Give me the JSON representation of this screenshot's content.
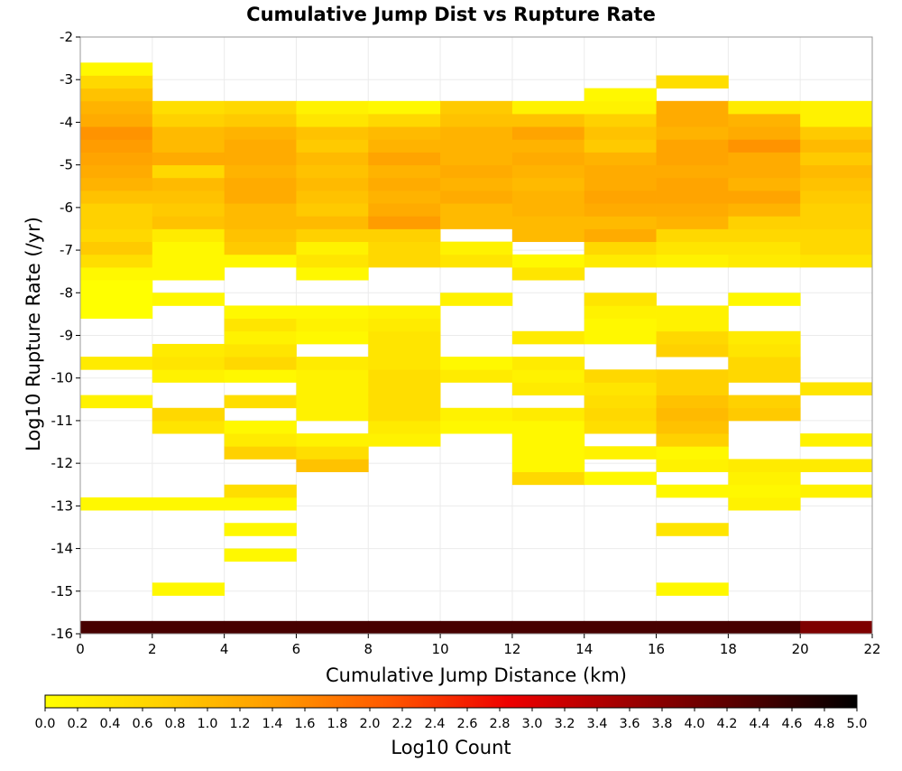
{
  "chart_data": {
    "type": "heatmap",
    "title": "Cumulative Jump Dist vs Rupture Rate",
    "xlabel": "Cumulative Jump Distance (km)",
    "ylabel": "Log10 Rupture Rate (/yr)",
    "colorbar_label": "Log10 Count",
    "xlim": [
      0,
      22
    ],
    "ylim": [
      -16,
      -2
    ],
    "x_ticks": [
      "0",
      "2",
      "4",
      "6",
      "8",
      "10",
      "12",
      "14",
      "16",
      "18",
      "20",
      "22"
    ],
    "y_ticks": [
      "-2",
      "-3",
      "-4",
      "-5",
      "-6",
      "-7",
      "-8",
      "-9",
      "-10",
      "-11",
      "-12",
      "-13",
      "-14",
      "-15",
      "-16"
    ],
    "colorbar_range": [
      0,
      5
    ],
    "colorbar_ticks": [
      "0.0",
      "0.2",
      "0.4",
      "0.6",
      "0.8",
      "1.0",
      "1.2",
      "1.4",
      "1.6",
      "1.8",
      "2.0",
      "2.2",
      "2.4",
      "2.6",
      "2.8",
      "3.0",
      "3.2",
      "3.4",
      "3.6",
      "3.8",
      "4.0",
      "4.2",
      "4.4",
      "4.6",
      "4.8",
      "5.0"
    ],
    "colormap": [
      "#ffff00",
      "#ffd000",
      "#ff9a00",
      "#ff5500",
      "#ee0000",
      "#a00000",
      "#550000",
      "#000000"
    ],
    "grid": true,
    "x_bin_width": 2,
    "y_bin_height": 0.3,
    "y_bin_origin": -16,
    "columns": [
      {
        "x": 0,
        "cells": [
          [
            -16.0,
            4.4
          ],
          [
            -13.1,
            0.1
          ],
          [
            -10.7,
            0.2
          ],
          [
            -9.8,
            0.3
          ],
          [
            -8.6,
            0.0
          ],
          [
            -8.3,
            0.0
          ],
          [
            -8.0,
            0.0
          ],
          [
            -7.7,
            0.1
          ],
          [
            -7.4,
            0.5
          ],
          [
            -7.1,
            0.8
          ],
          [
            -6.8,
            0.6
          ],
          [
            -6.5,
            0.7
          ],
          [
            -6.2,
            0.7
          ],
          [
            -5.9,
            0.9
          ],
          [
            -5.6,
            1.1
          ],
          [
            -5.3,
            1.2
          ],
          [
            -5.0,
            1.3
          ],
          [
            -4.7,
            1.4
          ],
          [
            -4.4,
            1.5
          ],
          [
            -4.1,
            1.2
          ],
          [
            -3.8,
            1.1
          ],
          [
            -3.5,
            0.9
          ],
          [
            -3.2,
            0.6
          ],
          [
            -2.9,
            0.1
          ]
        ]
      },
      {
        "x": 2,
        "cells": [
          [
            -16.0,
            4.4
          ],
          [
            -15.1,
            0.1
          ],
          [
            -13.1,
            0.1
          ],
          [
            -11.3,
            0.4
          ],
          [
            -11.0,
            0.6
          ],
          [
            -10.1,
            0.2
          ],
          [
            -9.8,
            0.4
          ],
          [
            -9.5,
            0.3
          ],
          [
            -8.3,
            0.1
          ],
          [
            -7.7,
            0.1
          ],
          [
            -7.4,
            0.1
          ],
          [
            -7.1,
            0.1
          ],
          [
            -6.8,
            0.3
          ],
          [
            -6.5,
            0.9
          ],
          [
            -6.2,
            0.8
          ],
          [
            -5.9,
            0.9
          ],
          [
            -5.6,
            1.0
          ],
          [
            -5.3,
            0.6
          ],
          [
            -5.0,
            1.2
          ],
          [
            -4.7,
            1.0
          ],
          [
            -4.4,
            1.0
          ],
          [
            -4.1,
            0.7
          ],
          [
            -3.8,
            0.5
          ]
        ]
      },
      {
        "x": 4,
        "cells": [
          [
            -16.0,
            4.4
          ],
          [
            -14.3,
            0.1
          ],
          [
            -13.7,
            0.1
          ],
          [
            -13.1,
            0.1
          ],
          [
            -12.8,
            0.5
          ],
          [
            -11.9,
            0.7
          ],
          [
            -11.6,
            0.3
          ],
          [
            -11.3,
            0.1
          ],
          [
            -10.7,
            0.5
          ],
          [
            -10.1,
            0.1
          ],
          [
            -9.8,
            0.6
          ],
          [
            -9.5,
            0.4
          ],
          [
            -9.2,
            0.2
          ],
          [
            -8.9,
            0.4
          ],
          [
            -8.6,
            0.1
          ],
          [
            -7.4,
            0.1
          ],
          [
            -7.1,
            0.8
          ],
          [
            -6.8,
            0.9
          ],
          [
            -6.5,
            1.0
          ],
          [
            -6.2,
            1.0
          ],
          [
            -5.9,
            1.2
          ],
          [
            -5.6,
            1.2
          ],
          [
            -5.3,
            1.1
          ],
          [
            -5.0,
            1.2
          ],
          [
            -4.7,
            1.2
          ],
          [
            -4.4,
            1.1
          ],
          [
            -4.1,
            0.8
          ],
          [
            -3.8,
            0.6
          ]
        ]
      },
      {
        "x": 6,
        "cells": [
          [
            -16.0,
            4.4
          ],
          [
            -12.2,
            0.9
          ],
          [
            -11.9,
            0.5
          ],
          [
            -11.6,
            0.2
          ],
          [
            -11.0,
            0.2
          ],
          [
            -10.7,
            0.2
          ],
          [
            -10.4,
            0.2
          ],
          [
            -10.1,
            0.2
          ],
          [
            -9.8,
            0.3
          ],
          [
            -9.2,
            0.1
          ],
          [
            -8.9,
            0.2
          ],
          [
            -8.6,
            0.1
          ],
          [
            -7.7,
            0.1
          ],
          [
            -7.4,
            0.4
          ],
          [
            -7.1,
            0.2
          ],
          [
            -6.8,
            0.7
          ],
          [
            -6.5,
            1.0
          ],
          [
            -6.2,
            0.8
          ],
          [
            -5.9,
            0.9
          ],
          [
            -5.6,
            1.0
          ],
          [
            -5.3,
            0.9
          ],
          [
            -5.0,
            1.0
          ],
          [
            -4.7,
            0.8
          ],
          [
            -4.4,
            0.9
          ],
          [
            -4.1,
            0.4
          ],
          [
            -3.8,
            0.2
          ]
        ]
      },
      {
        "x": 8,
        "cells": [
          [
            -16.0,
            4.4
          ],
          [
            -11.6,
            0.2
          ],
          [
            -11.3,
            0.3
          ],
          [
            -11.0,
            0.5
          ],
          [
            -10.7,
            0.5
          ],
          [
            -10.4,
            0.5
          ],
          [
            -10.1,
            0.5
          ],
          [
            -9.8,
            0.4
          ],
          [
            -9.5,
            0.4
          ],
          [
            -9.2,
            0.4
          ],
          [
            -8.9,
            0.3
          ],
          [
            -8.6,
            0.2
          ],
          [
            -7.4,
            0.6
          ],
          [
            -7.1,
            0.6
          ],
          [
            -6.8,
            0.7
          ],
          [
            -6.5,
            1.4
          ],
          [
            -6.2,
            1.2
          ],
          [
            -5.9,
            1.1
          ],
          [
            -5.6,
            1.2
          ],
          [
            -5.3,
            1.1
          ],
          [
            -5.0,
            1.3
          ],
          [
            -4.7,
            1.1
          ],
          [
            -4.4,
            1.0
          ],
          [
            -4.1,
            0.6
          ],
          [
            -3.8,
            0.1
          ]
        ]
      },
      {
        "x": 10,
        "cells": [
          [
            -16.0,
            4.4
          ],
          [
            -11.3,
            0.1
          ],
          [
            -11.0,
            0.2
          ],
          [
            -10.1,
            0.3
          ],
          [
            -9.8,
            0.1
          ],
          [
            -8.3,
            0.2
          ],
          [
            -7.4,
            0.4
          ],
          [
            -7.1,
            0.2
          ],
          [
            -6.5,
            1.0
          ],
          [
            -6.2,
            1.0
          ],
          [
            -5.9,
            1.2
          ],
          [
            -5.6,
            1.1
          ],
          [
            -5.3,
            1.2
          ],
          [
            -5.0,
            1.1
          ],
          [
            -4.7,
            1.1
          ],
          [
            -4.4,
            1.1
          ],
          [
            -4.1,
            0.9
          ],
          [
            -3.8,
            0.8
          ]
        ]
      },
      {
        "x": 12,
        "cells": [
          [
            -16.0,
            4.4
          ],
          [
            -12.5,
            0.6
          ],
          [
            -12.2,
            0.1
          ],
          [
            -11.9,
            0.1
          ],
          [
            -11.6,
            0.1
          ],
          [
            -11.3,
            0.1
          ],
          [
            -11.0,
            0.3
          ],
          [
            -10.4,
            0.3
          ],
          [
            -10.1,
            0.2
          ],
          [
            -9.8,
            0.3
          ],
          [
            -9.2,
            0.3
          ],
          [
            -7.7,
            0.4
          ],
          [
            -7.4,
            0.1
          ],
          [
            -6.8,
            1.0
          ],
          [
            -6.5,
            1.0
          ],
          [
            -6.2,
            1.1
          ],
          [
            -5.9,
            1.1
          ],
          [
            -5.6,
            1.0
          ],
          [
            -5.3,
            1.1
          ],
          [
            -5.0,
            1.2
          ],
          [
            -4.7,
            1.1
          ],
          [
            -4.4,
            1.3
          ],
          [
            -4.1,
            0.9
          ],
          [
            -3.8,
            0.2
          ]
        ]
      },
      {
        "x": 14,
        "cells": [
          [
            -16.0,
            4.4
          ],
          [
            -12.5,
            0.1
          ],
          [
            -11.9,
            0.2
          ],
          [
            -11.3,
            0.5
          ],
          [
            -11.0,
            0.6
          ],
          [
            -10.7,
            0.5
          ],
          [
            -10.4,
            0.4
          ],
          [
            -10.1,
            0.6
          ],
          [
            -9.2,
            0.1
          ],
          [
            -8.9,
            0.1
          ],
          [
            -8.6,
            0.2
          ],
          [
            -8.3,
            0.4
          ],
          [
            -7.4,
            0.3
          ],
          [
            -7.1,
            0.6
          ],
          [
            -6.8,
            1.2
          ],
          [
            -6.5,
            1.0
          ],
          [
            -6.2,
            1.2
          ],
          [
            -5.9,
            1.3
          ],
          [
            -5.6,
            1.2
          ],
          [
            -5.3,
            1.2
          ],
          [
            -5.0,
            1.1
          ],
          [
            -4.7,
            0.8
          ],
          [
            -4.4,
            0.9
          ],
          [
            -4.1,
            0.7
          ],
          [
            -3.8,
            0.2
          ],
          [
            -3.5,
            0.1
          ]
        ]
      },
      {
        "x": 16,
        "cells": [
          [
            -16.0,
            4.4
          ],
          [
            -15.1,
            0.1
          ],
          [
            -13.7,
            0.4
          ],
          [
            -12.8,
            0.1
          ],
          [
            -12.2,
            0.2
          ],
          [
            -11.9,
            0.1
          ],
          [
            -11.6,
            0.7
          ],
          [
            -11.3,
            0.9
          ],
          [
            -11.0,
            1.0
          ],
          [
            -10.7,
            0.9
          ],
          [
            -10.4,
            0.7
          ],
          [
            -10.1,
            0.7
          ],
          [
            -9.5,
            0.7
          ],
          [
            -9.2,
            0.6
          ],
          [
            -8.9,
            0.2
          ],
          [
            -8.6,
            0.2
          ],
          [
            -7.4,
            0.2
          ],
          [
            -7.1,
            0.4
          ],
          [
            -6.8,
            0.6
          ],
          [
            -6.5,
            1.1
          ],
          [
            -6.2,
            1.2
          ],
          [
            -5.9,
            1.3
          ],
          [
            -5.6,
            1.3
          ],
          [
            -5.3,
            1.2
          ],
          [
            -5.0,
            1.3
          ],
          [
            -4.7,
            1.3
          ],
          [
            -4.4,
            1.1
          ],
          [
            -4.1,
            1.2
          ],
          [
            -3.8,
            1.2
          ],
          [
            -3.2,
            0.5
          ]
        ]
      },
      {
        "x": 18,
        "cells": [
          [
            -16.0,
            4.4
          ],
          [
            -13.1,
            0.2
          ],
          [
            -12.8,
            0.1
          ],
          [
            -12.5,
            0.2
          ],
          [
            -12.2,
            0.3
          ],
          [
            -11.0,
            0.8
          ],
          [
            -10.7,
            0.7
          ],
          [
            -10.1,
            0.6
          ],
          [
            -9.8,
            0.6
          ],
          [
            -9.5,
            0.4
          ],
          [
            -9.2,
            0.3
          ],
          [
            -8.3,
            0.1
          ],
          [
            -7.4,
            0.3
          ],
          [
            -7.1,
            0.4
          ],
          [
            -6.8,
            0.6
          ],
          [
            -6.5,
            0.7
          ],
          [
            -6.2,
            1.1
          ],
          [
            -5.9,
            1.3
          ],
          [
            -5.6,
            1.1
          ],
          [
            -5.3,
            1.2
          ],
          [
            -5.0,
            1.2
          ],
          [
            -4.7,
            1.5
          ],
          [
            -4.4,
            1.2
          ],
          [
            -4.1,
            1.1
          ],
          [
            -3.8,
            0.3
          ]
        ]
      },
      {
        "x": 20,
        "cells": [
          [
            -16.0,
            3.9
          ],
          [
            -12.8,
            0.2
          ],
          [
            -12.2,
            0.3
          ],
          [
            -11.6,
            0.2
          ],
          [
            -10.4,
            0.4
          ],
          [
            -7.4,
            0.4
          ],
          [
            -7.1,
            0.6
          ],
          [
            -6.8,
            0.6
          ],
          [
            -6.5,
            0.7
          ],
          [
            -6.2,
            0.7
          ],
          [
            -5.9,
            0.8
          ],
          [
            -5.6,
            0.9
          ],
          [
            -5.3,
            1.0
          ],
          [
            -5.0,
            0.8
          ],
          [
            -4.7,
            1.0
          ],
          [
            -4.4,
            0.8
          ],
          [
            -4.1,
            0.2
          ],
          [
            -3.8,
            0.2
          ]
        ]
      }
    ]
  }
}
